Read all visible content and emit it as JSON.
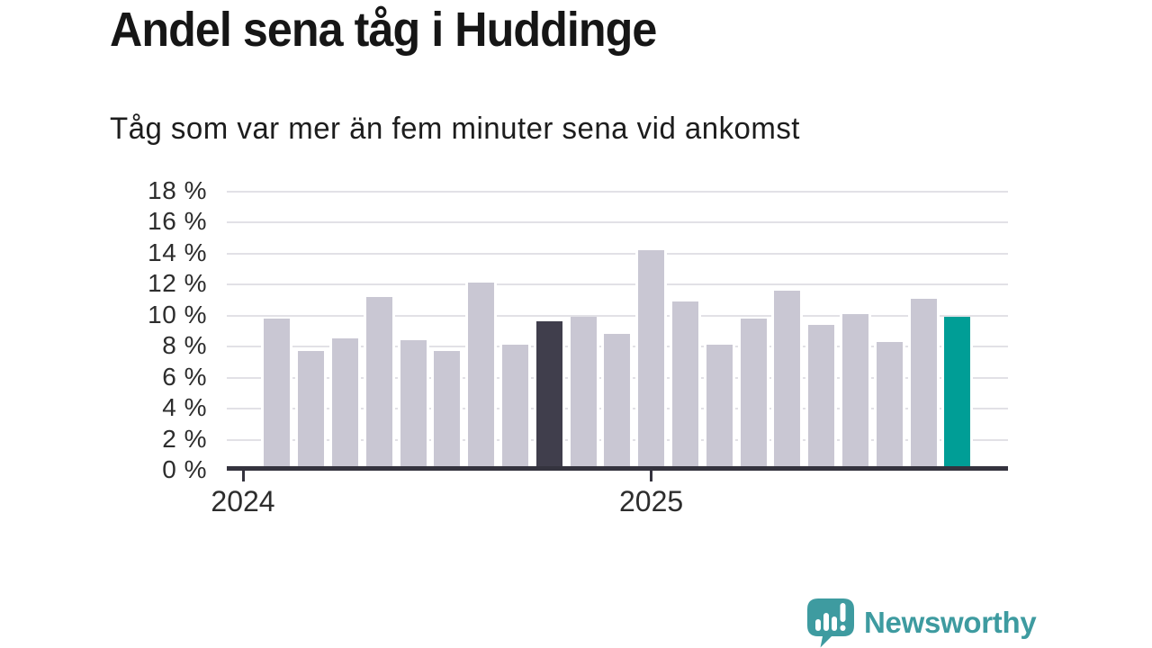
{
  "header": {
    "title": "Andel sena tåg i Huddinge",
    "subtitle": "Tåg som var mer än fem minuter sena vid ankomst"
  },
  "chart_data": {
    "type": "bar",
    "title": "Andel sena tåg i Huddinge",
    "subtitle": "Tåg som var mer än fem minuter sena vid ankomst",
    "unit": "%",
    "ylim": [
      0,
      18
    ],
    "y_ticks": [
      0,
      2,
      4,
      6,
      8,
      10,
      12,
      14,
      16,
      18
    ],
    "y_tick_labels": [
      "0 %",
      "2 %",
      "4 %",
      "6 %",
      "8 %",
      "10 %",
      "12 %",
      "14 %",
      "16 %",
      "18 %"
    ],
    "grid": "horizontal",
    "legend": "none",
    "x_ticks": [
      {
        "label": "2024",
        "month_slot": 0
      },
      {
        "label": "2025",
        "month_slot": 12
      }
    ],
    "bars": {
      "first_month_slot": 1,
      "values": [
        9.8,
        7.7,
        8.5,
        11.2,
        8.4,
        7.7,
        12.1,
        8.1,
        9.6,
        9.9,
        8.8,
        14.2,
        10.9,
        8.1,
        9.8,
        11.6,
        9.4,
        10.1,
        8.3,
        11.1,
        9.9
      ],
      "highlight_dark_index": 8,
      "highlight_teal_index": 20
    },
    "colors": {
      "bar_default": "#C9C7D3",
      "bar_highlight_dark": "#403E4C",
      "bar_highlight_teal": "#009E96",
      "gridline": "#E2E1E6",
      "axis": "#34333E",
      "axis_tick": "#34333E",
      "tick_label_text": "#2D2D2D",
      "title_text": "#161616",
      "subtitle_text": "#1D1D1D"
    }
  },
  "footer": {
    "brand": "Newsworthy",
    "brand_color": "#3E9BA0",
    "logo_icon": "newsworthy-speech-bubble-bar-chart-icon"
  }
}
